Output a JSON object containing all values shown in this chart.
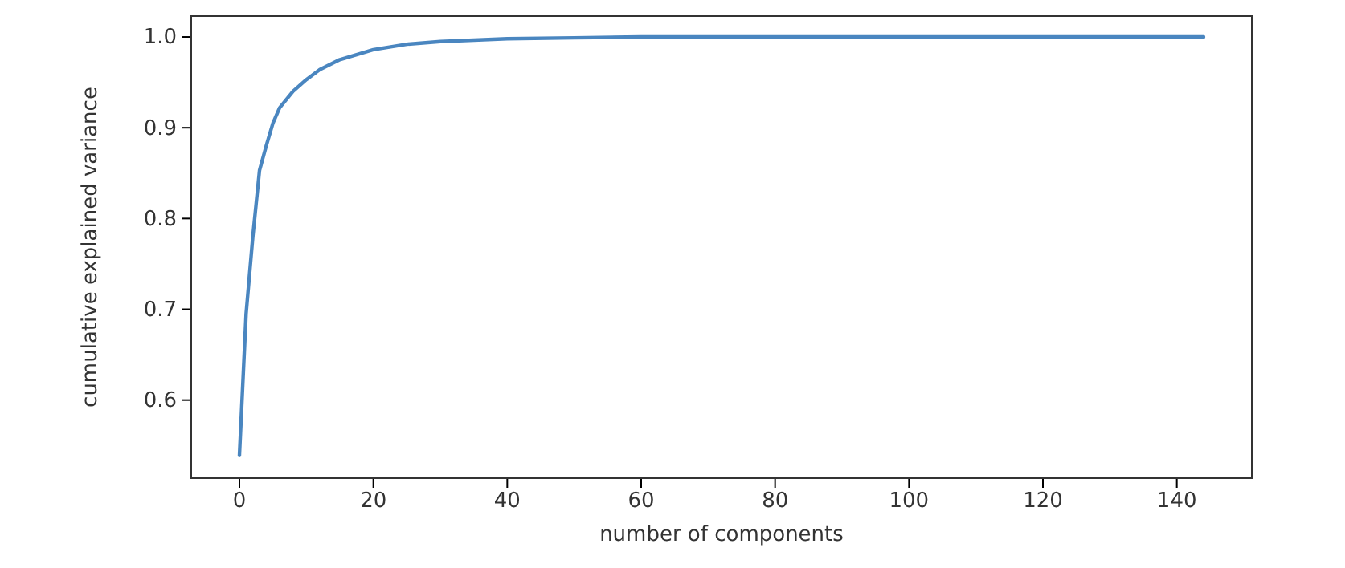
{
  "chart_data": {
    "type": "line",
    "xlabel": "number of components",
    "ylabel": "cumulative explained variance",
    "xlim": [
      -7.2,
      151.2
    ],
    "ylim": [
      0.514,
      1.023
    ],
    "xticks": [
      0,
      20,
      40,
      60,
      80,
      100,
      120,
      140
    ],
    "yticks": [
      {
        "value": 0.6,
        "label": "0.6"
      },
      {
        "value": 0.7,
        "label": "0.7"
      },
      {
        "value": 0.8,
        "label": "0.8"
      },
      {
        "value": 0.9,
        "label": "0.9"
      },
      {
        "value": 1.0,
        "label": "1.0"
      }
    ],
    "x": [
      0,
      1,
      2,
      3,
      4,
      5,
      6,
      8,
      10,
      12,
      15,
      20,
      25,
      30,
      40,
      50,
      60,
      80,
      100,
      120,
      144
    ],
    "series": [
      {
        "color": "#4a86c0",
        "values": [
          0.539,
          0.695,
          0.78,
          0.853,
          0.88,
          0.905,
          0.922,
          0.94,
          0.953,
          0.964,
          0.975,
          0.986,
          0.992,
          0.995,
          0.998,
          0.999,
          1.0,
          1.0,
          1.0,
          1.0,
          1.0
        ]
      }
    ]
  }
}
